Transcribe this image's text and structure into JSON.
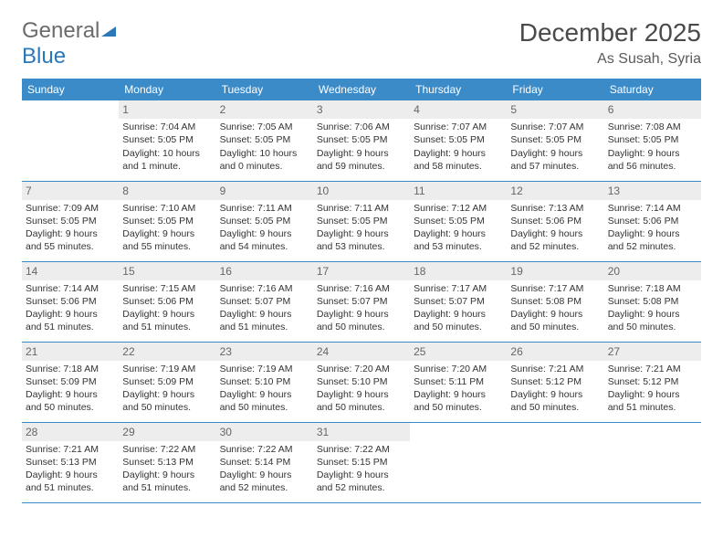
{
  "brand": {
    "part1": "General",
    "part2": "Blue"
  },
  "title": "December 2025",
  "location": "As Susah, Syria",
  "colors": {
    "header_bg": "#3b8bc9",
    "header_text": "#ffffff",
    "border": "#3b8bc9",
    "daynum_bg": "#ededed",
    "body_text": "#333333",
    "logo_gray": "#6b6b6b",
    "logo_blue": "#2a78b8"
  },
  "weekdays": [
    "Sunday",
    "Monday",
    "Tuesday",
    "Wednesday",
    "Thursday",
    "Friday",
    "Saturday"
  ],
  "weeks": [
    [
      {
        "day": "",
        "sunrise": "",
        "sunset": "",
        "daylight": ""
      },
      {
        "day": "1",
        "sunrise": "Sunrise: 7:04 AM",
        "sunset": "Sunset: 5:05 PM",
        "daylight": "Daylight: 10 hours and 1 minute."
      },
      {
        "day": "2",
        "sunrise": "Sunrise: 7:05 AM",
        "sunset": "Sunset: 5:05 PM",
        "daylight": "Daylight: 10 hours and 0 minutes."
      },
      {
        "day": "3",
        "sunrise": "Sunrise: 7:06 AM",
        "sunset": "Sunset: 5:05 PM",
        "daylight": "Daylight: 9 hours and 59 minutes."
      },
      {
        "day": "4",
        "sunrise": "Sunrise: 7:07 AM",
        "sunset": "Sunset: 5:05 PM",
        "daylight": "Daylight: 9 hours and 58 minutes."
      },
      {
        "day": "5",
        "sunrise": "Sunrise: 7:07 AM",
        "sunset": "Sunset: 5:05 PM",
        "daylight": "Daylight: 9 hours and 57 minutes."
      },
      {
        "day": "6",
        "sunrise": "Sunrise: 7:08 AM",
        "sunset": "Sunset: 5:05 PM",
        "daylight": "Daylight: 9 hours and 56 minutes."
      }
    ],
    [
      {
        "day": "7",
        "sunrise": "Sunrise: 7:09 AM",
        "sunset": "Sunset: 5:05 PM",
        "daylight": "Daylight: 9 hours and 55 minutes."
      },
      {
        "day": "8",
        "sunrise": "Sunrise: 7:10 AM",
        "sunset": "Sunset: 5:05 PM",
        "daylight": "Daylight: 9 hours and 55 minutes."
      },
      {
        "day": "9",
        "sunrise": "Sunrise: 7:11 AM",
        "sunset": "Sunset: 5:05 PM",
        "daylight": "Daylight: 9 hours and 54 minutes."
      },
      {
        "day": "10",
        "sunrise": "Sunrise: 7:11 AM",
        "sunset": "Sunset: 5:05 PM",
        "daylight": "Daylight: 9 hours and 53 minutes."
      },
      {
        "day": "11",
        "sunrise": "Sunrise: 7:12 AM",
        "sunset": "Sunset: 5:05 PM",
        "daylight": "Daylight: 9 hours and 53 minutes."
      },
      {
        "day": "12",
        "sunrise": "Sunrise: 7:13 AM",
        "sunset": "Sunset: 5:06 PM",
        "daylight": "Daylight: 9 hours and 52 minutes."
      },
      {
        "day": "13",
        "sunrise": "Sunrise: 7:14 AM",
        "sunset": "Sunset: 5:06 PM",
        "daylight": "Daylight: 9 hours and 52 minutes."
      }
    ],
    [
      {
        "day": "14",
        "sunrise": "Sunrise: 7:14 AM",
        "sunset": "Sunset: 5:06 PM",
        "daylight": "Daylight: 9 hours and 51 minutes."
      },
      {
        "day": "15",
        "sunrise": "Sunrise: 7:15 AM",
        "sunset": "Sunset: 5:06 PM",
        "daylight": "Daylight: 9 hours and 51 minutes."
      },
      {
        "day": "16",
        "sunrise": "Sunrise: 7:16 AM",
        "sunset": "Sunset: 5:07 PM",
        "daylight": "Daylight: 9 hours and 51 minutes."
      },
      {
        "day": "17",
        "sunrise": "Sunrise: 7:16 AM",
        "sunset": "Sunset: 5:07 PM",
        "daylight": "Daylight: 9 hours and 50 minutes."
      },
      {
        "day": "18",
        "sunrise": "Sunrise: 7:17 AM",
        "sunset": "Sunset: 5:07 PM",
        "daylight": "Daylight: 9 hours and 50 minutes."
      },
      {
        "day": "19",
        "sunrise": "Sunrise: 7:17 AM",
        "sunset": "Sunset: 5:08 PM",
        "daylight": "Daylight: 9 hours and 50 minutes."
      },
      {
        "day": "20",
        "sunrise": "Sunrise: 7:18 AM",
        "sunset": "Sunset: 5:08 PM",
        "daylight": "Daylight: 9 hours and 50 minutes."
      }
    ],
    [
      {
        "day": "21",
        "sunrise": "Sunrise: 7:18 AM",
        "sunset": "Sunset: 5:09 PM",
        "daylight": "Daylight: 9 hours and 50 minutes."
      },
      {
        "day": "22",
        "sunrise": "Sunrise: 7:19 AM",
        "sunset": "Sunset: 5:09 PM",
        "daylight": "Daylight: 9 hours and 50 minutes."
      },
      {
        "day": "23",
        "sunrise": "Sunrise: 7:19 AM",
        "sunset": "Sunset: 5:10 PM",
        "daylight": "Daylight: 9 hours and 50 minutes."
      },
      {
        "day": "24",
        "sunrise": "Sunrise: 7:20 AM",
        "sunset": "Sunset: 5:10 PM",
        "daylight": "Daylight: 9 hours and 50 minutes."
      },
      {
        "day": "25",
        "sunrise": "Sunrise: 7:20 AM",
        "sunset": "Sunset: 5:11 PM",
        "daylight": "Daylight: 9 hours and 50 minutes."
      },
      {
        "day": "26",
        "sunrise": "Sunrise: 7:21 AM",
        "sunset": "Sunset: 5:12 PM",
        "daylight": "Daylight: 9 hours and 50 minutes."
      },
      {
        "day": "27",
        "sunrise": "Sunrise: 7:21 AM",
        "sunset": "Sunset: 5:12 PM",
        "daylight": "Daylight: 9 hours and 51 minutes."
      }
    ],
    [
      {
        "day": "28",
        "sunrise": "Sunrise: 7:21 AM",
        "sunset": "Sunset: 5:13 PM",
        "daylight": "Daylight: 9 hours and 51 minutes."
      },
      {
        "day": "29",
        "sunrise": "Sunrise: 7:22 AM",
        "sunset": "Sunset: 5:13 PM",
        "daylight": "Daylight: 9 hours and 51 minutes."
      },
      {
        "day": "30",
        "sunrise": "Sunrise: 7:22 AM",
        "sunset": "Sunset: 5:14 PM",
        "daylight": "Daylight: 9 hours and 52 minutes."
      },
      {
        "day": "31",
        "sunrise": "Sunrise: 7:22 AM",
        "sunset": "Sunset: 5:15 PM",
        "daylight": "Daylight: 9 hours and 52 minutes."
      },
      {
        "day": "",
        "sunrise": "",
        "sunset": "",
        "daylight": ""
      },
      {
        "day": "",
        "sunrise": "",
        "sunset": "",
        "daylight": ""
      },
      {
        "day": "",
        "sunrise": "",
        "sunset": "",
        "daylight": ""
      }
    ]
  ]
}
